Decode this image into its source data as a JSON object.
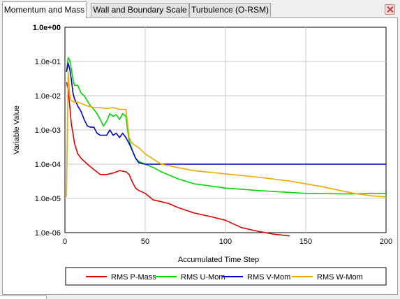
{
  "tabs": [
    {
      "label": "Momentum and Mass",
      "active": true
    },
    {
      "label": "Wall and Boundary Scale",
      "active": false
    },
    {
      "label": "Turbulence (O-RSM)",
      "active": false
    }
  ],
  "icons": {
    "close": "close-icon"
  },
  "chart_data": {
    "type": "line",
    "xlabel": "Accumulated Time Step",
    "ylabel": "Variable Value",
    "xlim": [
      0,
      200
    ],
    "ylim": [
      1e-06,
      1
    ],
    "yscale": "log",
    "xticks": [
      0,
      50,
      100,
      150,
      200
    ],
    "yticks": [
      "1.0e-06",
      "1.0e-05",
      "1.0e-04",
      "1.0e-03",
      "1.0e-02",
      "1.0e-01",
      "1.0e+00"
    ],
    "grid": true,
    "legend_position": "bottom",
    "series": [
      {
        "name": "RMS P-Mass",
        "color": "#e00000",
        "x": [
          1,
          2,
          3,
          4,
          5,
          6,
          8,
          10,
          14,
          18,
          22,
          26,
          30,
          34,
          38,
          40,
          42,
          44,
          46,
          50,
          55,
          60,
          65,
          70,
          80,
          90,
          100,
          110,
          120,
          130,
          140
        ],
        "y": [
          0.025,
          0.015,
          0.005,
          0.0015,
          0.0008,
          0.0004,
          0.0002,
          0.00015,
          0.0001,
          7e-05,
          5e-05,
          5e-05,
          5.5e-05,
          6.5e-05,
          6e-05,
          5e-05,
          3e-05,
          2e-05,
          1.7e-05,
          1.4e-05,
          9e-06,
          8e-06,
          7e-06,
          5.5e-06,
          3.8e-06,
          3e-06,
          2.3e-06,
          1.4e-06,
          1.1e-06,
          9e-07,
          8e-07
        ]
      },
      {
        "name": "RMS U-Mom",
        "color": "#00d800",
        "x": [
          1,
          2,
          3,
          4,
          5,
          6,
          8,
          10,
          12,
          14,
          16,
          18,
          20,
          22,
          24,
          26,
          28,
          30,
          32,
          34,
          36,
          38,
          39,
          40,
          42,
          44,
          46,
          50,
          55,
          60,
          70,
          80,
          100,
          120,
          150,
          175,
          200
        ],
        "y": [
          0.05,
          0.13,
          0.11,
          0.06,
          0.03,
          0.02,
          0.02,
          0.012,
          0.01,
          0.007,
          0.005,
          0.004,
          0.003,
          0.002,
          0.0013,
          0.0018,
          0.003,
          0.0025,
          0.0028,
          0.002,
          0.003,
          0.0025,
          0.001,
          0.0005,
          0.00025,
          0.00015,
          0.00012,
          0.0001,
          8e-05,
          6e-05,
          3.8e-05,
          2.7e-05,
          2e-05,
          1.7e-05,
          1.4e-05,
          1.35e-05,
          1.4e-05
        ]
      },
      {
        "name": "RMS V-Mom",
        "color": "#0000c8",
        "x": [
          1,
          2,
          3,
          4,
          5,
          6,
          8,
          10,
          12,
          14,
          16,
          18,
          20,
          22,
          24,
          26,
          28,
          30,
          32,
          34,
          36,
          38,
          40,
          42,
          44,
          46,
          50,
          55,
          60,
          70,
          80,
          90,
          100,
          120,
          140,
          160,
          180,
          200
        ],
        "y": [
          0.05,
          0.09,
          0.06,
          0.03,
          0.012,
          0.008,
          0.005,
          0.0035,
          0.002,
          0.0013,
          0.0012,
          0.0012,
          0.0008,
          0.0007,
          0.0007,
          0.0007,
          0.001,
          0.0007,
          0.0008,
          0.0006,
          0.0008,
          0.0006,
          0.0004,
          0.00025,
          0.00015,
          0.00011,
          0.0001,
          0.0001,
          0.0001,
          0.0001,
          0.0001,
          0.0001,
          0.0001,
          0.0001,
          0.0001,
          0.0001,
          0.0001,
          0.0001
        ]
      },
      {
        "name": "RMS W-Mom",
        "color": "#f0a800",
        "x": [
          1,
          2,
          3,
          4,
          5,
          6,
          8,
          10,
          14,
          18,
          22,
          26,
          30,
          34,
          38,
          40,
          42,
          46,
          50,
          55,
          60,
          70,
          80,
          100,
          120,
          140,
          160,
          180,
          190,
          200
        ],
        "y": [
          1.1e-05,
          0.05,
          0.01,
          0.007,
          0.007,
          0.0065,
          0.0065,
          0.006,
          0.005,
          0.0045,
          0.0045,
          0.0042,
          0.0045,
          0.004,
          0.004,
          0.0006,
          0.0004,
          0.0003,
          0.0002,
          0.00014,
          0.0001,
          8e-05,
          6.5e-05,
          5.2e-05,
          4.2e-05,
          3.2e-05,
          2.2e-05,
          1.4e-05,
          1.2e-05,
          1.1e-05
        ]
      }
    ]
  }
}
